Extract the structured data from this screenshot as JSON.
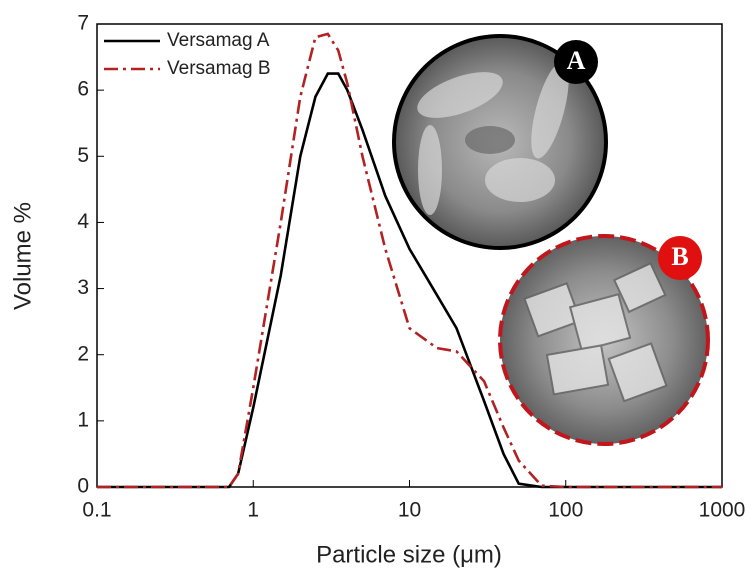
{
  "chart_data": {
    "type": "line",
    "x_label": "Particle size (μm)",
    "y_label": "Volume %",
    "xscale": "log",
    "x": [
      0.1,
      0.7,
      0.8,
      1,
      1.5,
      2,
      2.5,
      3,
      3.5,
      4,
      5,
      7,
      10,
      15,
      20,
      30,
      40,
      50,
      70,
      100,
      1000
    ],
    "series": [
      {
        "name": "Versamag A",
        "color": "#000000",
        "dash": "solid",
        "values": [
          0,
          0,
          0.2,
          1.2,
          3.2,
          5,
          5.9,
          6.25,
          6.25,
          6.0,
          5.4,
          4.4,
          3.6,
          2.9,
          2.4,
          1.3,
          0.5,
          0.05,
          0,
          0,
          0
        ]
      },
      {
        "name": "Versamag B",
        "color": "#b22222",
        "dash": "dashdot",
        "values": [
          0,
          0,
          0.2,
          1.5,
          4,
          5.9,
          6.8,
          6.85,
          6.6,
          6.1,
          5,
          3.6,
          2.4,
          2.1,
          2.05,
          1.6,
          0.9,
          0.4,
          0.02,
          0,
          0
        ]
      }
    ],
    "xlim": [
      0.1,
      1000
    ],
    "xticks": [
      0.1,
      1,
      10,
      100,
      1000
    ],
    "ylim": [
      0,
      7
    ],
    "yticks": [
      0,
      1,
      2,
      3,
      4,
      5,
      6,
      7
    ],
    "legend": "upper left",
    "insets": [
      {
        "label": "A"
      },
      {
        "label": "B"
      }
    ]
  }
}
